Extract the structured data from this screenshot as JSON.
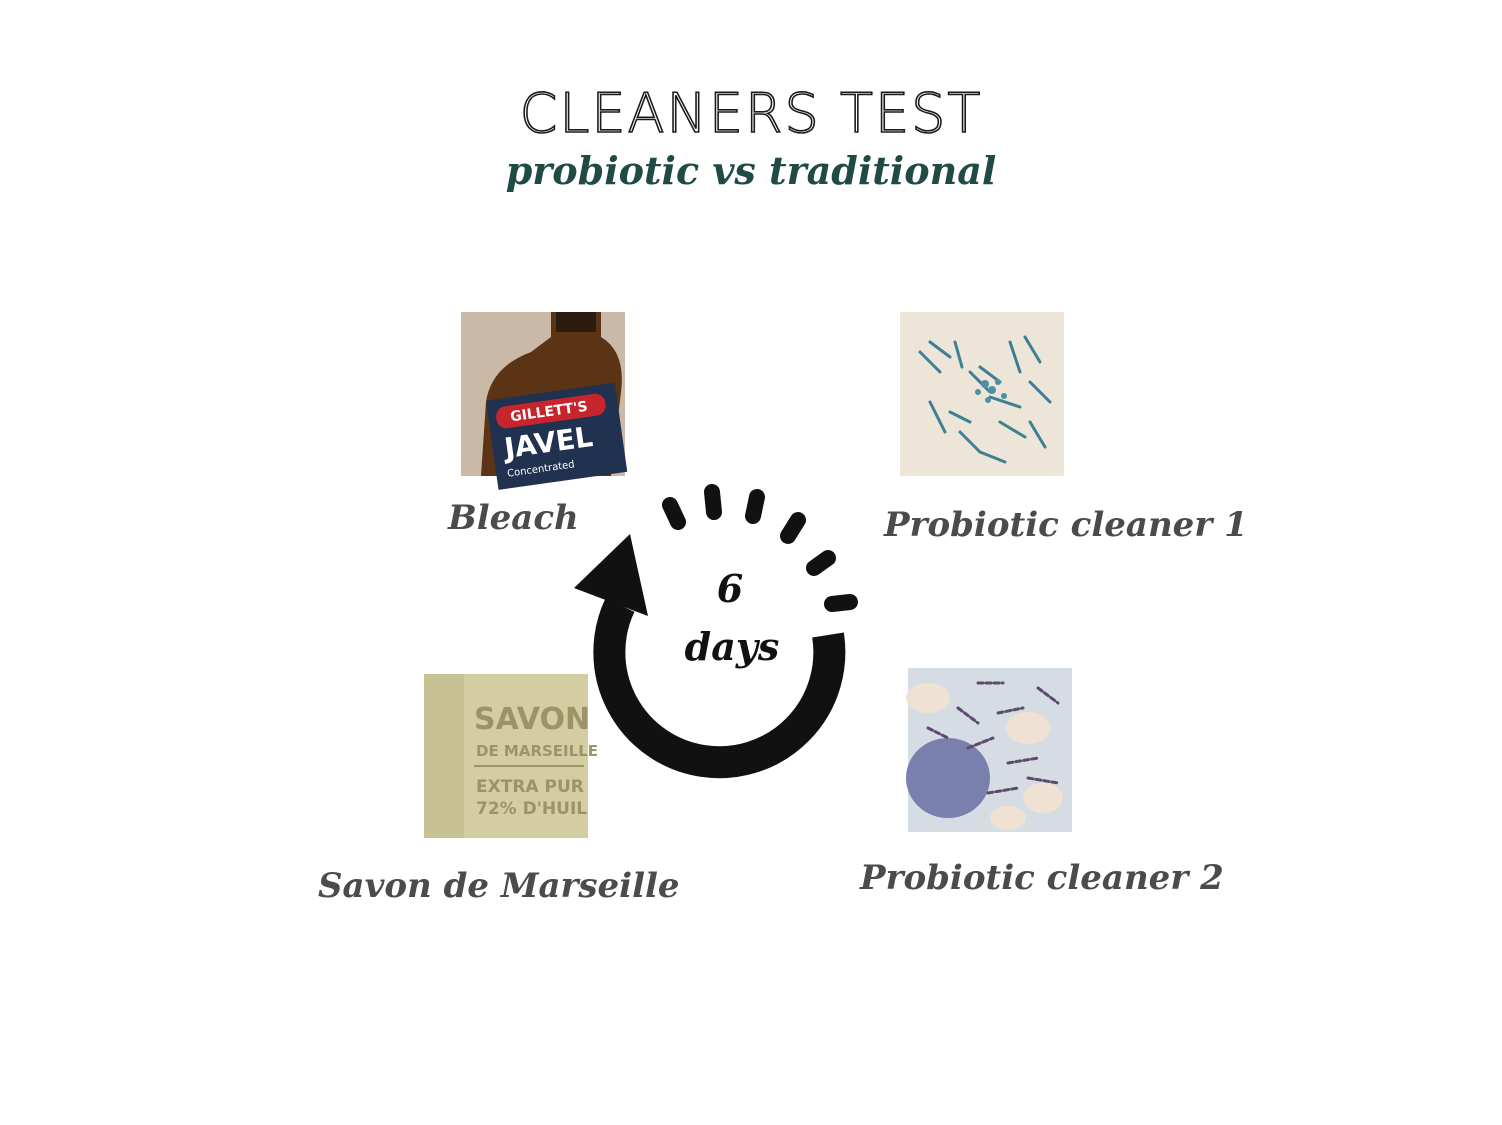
{
  "title": "CLEANERS TEST",
  "subtitle": "probiotic vs traditional",
  "cycle": {
    "number": "6",
    "unit": "days"
  },
  "items": [
    {
      "label": "Bleach",
      "bottle_brand": "GILLETT'S",
      "bottle_name": "JAVEL",
      "bottle_sub": "Concentrated",
      "icon": "bleach-bottle-image"
    },
    {
      "label": "Probiotic cleaner 1",
      "icon": "bacteria-micrograph-image"
    },
    {
      "label": "Savon de Marseille",
      "soap_lines": [
        "SAVON",
        "DE MARSEILLE",
        "EXTRA PUR",
        "72% D'HUIL"
      ],
      "icon": "soap-bar-image"
    },
    {
      "label": "Probiotic cleaner 2",
      "icon": "bacteria-micrograph-image"
    }
  ],
  "colors": {
    "subtitle": "#1f4a45",
    "labels": "#4b4b4b",
    "arrow": "#111111"
  }
}
